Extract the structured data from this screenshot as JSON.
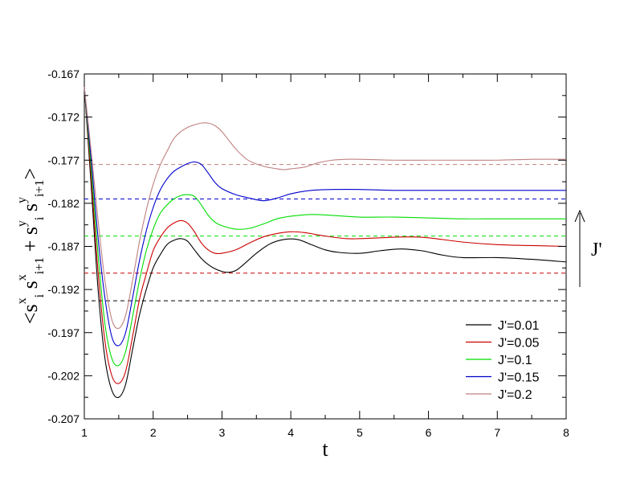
{
  "chart_data": {
    "type": "line",
    "xlabel": "t",
    "ylabel": {
      "base_parts": [
        "<s",
        "s",
        "+ s",
        "s",
        ">"
      ],
      "subscripts": [
        "i",
        "i+1",
        "i",
        "i+1"
      ],
      "superscripts": [
        "x",
        "x",
        "y",
        "y"
      ]
    },
    "xlim": [
      1,
      8
    ],
    "ylim": [
      -0.207,
      -0.167
    ],
    "xticks": [
      1,
      2,
      3,
      4,
      5,
      6,
      7,
      8
    ],
    "yticks": [
      -0.207,
      -0.202,
      -0.197,
      -0.192,
      -0.187,
      -0.182,
      -0.177,
      -0.172,
      -0.167
    ],
    "ytick_labels": [
      "-0.207",
      "-0.202",
      "-0.197",
      "-0.192",
      "-0.187",
      "-0.182",
      "-0.177",
      "-0.172",
      "-0.167"
    ],
    "grid": false,
    "legend_position": "bottom-right",
    "annotation": {
      "text": "J'",
      "arrow_direction": "up"
    },
    "series": [
      {
        "name": "J'=0.01",
        "color": "#000000",
        "points": [
          [
            1.0,
            -0.1685
          ],
          [
            1.1,
            -0.18
          ],
          [
            1.2,
            -0.192
          ],
          [
            1.3,
            -0.2
          ],
          [
            1.4,
            -0.2037
          ],
          [
            1.5,
            -0.2045
          ],
          [
            1.6,
            -0.203
          ],
          [
            1.7,
            -0.199
          ],
          [
            1.8,
            -0.195
          ],
          [
            1.9,
            -0.192
          ],
          [
            2.0,
            -0.1895
          ],
          [
            2.1,
            -0.188
          ],
          [
            2.2,
            -0.1868
          ],
          [
            2.3,
            -0.1863
          ],
          [
            2.4,
            -0.1861
          ],
          [
            2.5,
            -0.1864
          ],
          [
            2.6,
            -0.1874
          ],
          [
            2.7,
            -0.1884
          ],
          [
            2.8,
            -0.1891
          ],
          [
            2.9,
            -0.1896
          ],
          [
            3.0,
            -0.1899
          ],
          [
            3.1,
            -0.19
          ],
          [
            3.2,
            -0.1898
          ],
          [
            3.3,
            -0.1892
          ],
          [
            3.5,
            -0.1878
          ],
          [
            3.7,
            -0.1867
          ],
          [
            3.9,
            -0.1862
          ],
          [
            4.1,
            -0.1862
          ],
          [
            4.3,
            -0.1868
          ],
          [
            4.5,
            -0.1874
          ],
          [
            4.7,
            -0.1877
          ],
          [
            5.0,
            -0.1878
          ],
          [
            5.3,
            -0.1875
          ],
          [
            5.6,
            -0.1873
          ],
          [
            5.9,
            -0.1875
          ],
          [
            6.2,
            -0.188
          ],
          [
            6.5,
            -0.1883
          ],
          [
            7.0,
            -0.1883
          ],
          [
            7.5,
            -0.1885
          ],
          [
            8.0,
            -0.1888
          ]
        ]
      },
      {
        "name": "J'=0.05",
        "color": "#cc0000",
        "points": [
          [
            1.0,
            -0.1685
          ],
          [
            1.1,
            -0.179
          ],
          [
            1.2,
            -0.19
          ],
          [
            1.3,
            -0.198
          ],
          [
            1.4,
            -0.202
          ],
          [
            1.5,
            -0.2029
          ],
          [
            1.6,
            -0.2015
          ],
          [
            1.7,
            -0.1975
          ],
          [
            1.8,
            -0.1932
          ],
          [
            1.9,
            -0.1902
          ],
          [
            2.0,
            -0.1875
          ],
          [
            2.1,
            -0.186
          ],
          [
            2.2,
            -0.1849
          ],
          [
            2.3,
            -0.1843
          ],
          [
            2.4,
            -0.184
          ],
          [
            2.5,
            -0.1843
          ],
          [
            2.6,
            -0.1853
          ],
          [
            2.7,
            -0.1866
          ],
          [
            2.8,
            -0.1874
          ],
          [
            2.9,
            -0.1878
          ],
          [
            3.0,
            -0.1878
          ],
          [
            3.2,
            -0.1874
          ],
          [
            3.4,
            -0.1866
          ],
          [
            3.6,
            -0.1859
          ],
          [
            3.8,
            -0.1855
          ],
          [
            4.0,
            -0.1853
          ],
          [
            4.2,
            -0.1854
          ],
          [
            4.5,
            -0.1858
          ],
          [
            4.8,
            -0.1861
          ],
          [
            5.0,
            -0.1861
          ],
          [
            5.3,
            -0.186
          ],
          [
            5.7,
            -0.1859
          ],
          [
            6.0,
            -0.186
          ],
          [
            6.5,
            -0.1865
          ],
          [
            7.0,
            -0.1868
          ],
          [
            7.5,
            -0.1869
          ],
          [
            8.0,
            -0.187
          ]
        ]
      },
      {
        "name": "J'=0.1",
        "color": "#00dd00",
        "points": [
          [
            1.0,
            -0.1685
          ],
          [
            1.1,
            -0.178
          ],
          [
            1.2,
            -0.188
          ],
          [
            1.3,
            -0.196
          ],
          [
            1.4,
            -0.2
          ],
          [
            1.5,
            -0.2008
          ],
          [
            1.6,
            -0.1992
          ],
          [
            1.7,
            -0.1952
          ],
          [
            1.8,
            -0.191
          ],
          [
            1.9,
            -0.1875
          ],
          [
            2.0,
            -0.185
          ],
          [
            2.1,
            -0.1832
          ],
          [
            2.2,
            -0.1822
          ],
          [
            2.3,
            -0.1815
          ],
          [
            2.4,
            -0.1811
          ],
          [
            2.5,
            -0.181
          ],
          [
            2.6,
            -0.1812
          ],
          [
            2.7,
            -0.1822
          ],
          [
            2.8,
            -0.1834
          ],
          [
            2.9,
            -0.1842
          ],
          [
            3.0,
            -0.1846
          ],
          [
            3.2,
            -0.185
          ],
          [
            3.4,
            -0.1849
          ],
          [
            3.6,
            -0.1844
          ],
          [
            3.8,
            -0.1838
          ],
          [
            4.0,
            -0.1835
          ],
          [
            4.3,
            -0.1833
          ],
          [
            4.6,
            -0.1834
          ],
          [
            5.0,
            -0.1836
          ],
          [
            5.5,
            -0.1836
          ],
          [
            6.0,
            -0.1837
          ],
          [
            6.5,
            -0.1838
          ],
          [
            7.0,
            -0.1838
          ],
          [
            7.5,
            -0.1838
          ],
          [
            8.0,
            -0.1838
          ]
        ]
      },
      {
        "name": "J'=0.15",
        "color": "#0000cc",
        "points": [
          [
            1.0,
            -0.1685
          ],
          [
            1.1,
            -0.177
          ],
          [
            1.2,
            -0.186
          ],
          [
            1.3,
            -0.193
          ],
          [
            1.4,
            -0.1975
          ],
          [
            1.5,
            -0.1985
          ],
          [
            1.6,
            -0.197
          ],
          [
            1.7,
            -0.193
          ],
          [
            1.8,
            -0.1887
          ],
          [
            1.9,
            -0.1852
          ],
          [
            2.0,
            -0.1825
          ],
          [
            2.1,
            -0.1805
          ],
          [
            2.2,
            -0.1792
          ],
          [
            2.3,
            -0.1783
          ],
          [
            2.4,
            -0.1778
          ],
          [
            2.5,
            -0.1774
          ],
          [
            2.6,
            -0.1772
          ],
          [
            2.7,
            -0.1775
          ],
          [
            2.8,
            -0.1785
          ],
          [
            2.9,
            -0.1796
          ],
          [
            3.0,
            -0.1803
          ],
          [
            3.2,
            -0.181
          ],
          [
            3.4,
            -0.1814
          ],
          [
            3.6,
            -0.1817
          ],
          [
            3.8,
            -0.1814
          ],
          [
            4.0,
            -0.1809
          ],
          [
            4.3,
            -0.1805
          ],
          [
            4.6,
            -0.1804
          ],
          [
            5.0,
            -0.1804
          ],
          [
            5.5,
            -0.1805
          ],
          [
            6.0,
            -0.1805
          ],
          [
            6.5,
            -0.1805
          ],
          [
            7.0,
            -0.1805
          ],
          [
            7.5,
            -0.1805
          ],
          [
            8.0,
            -0.1805
          ]
        ]
      },
      {
        "name": "J'=0.2",
        "color": "#c08080",
        "points": [
          [
            1.0,
            -0.1685
          ],
          [
            1.1,
            -0.176
          ],
          [
            1.2,
            -0.184
          ],
          [
            1.3,
            -0.191
          ],
          [
            1.4,
            -0.1955
          ],
          [
            1.5,
            -0.1965
          ],
          [
            1.6,
            -0.195
          ],
          [
            1.7,
            -0.191
          ],
          [
            1.8,
            -0.1865
          ],
          [
            1.9,
            -0.1828
          ],
          [
            2.0,
            -0.1798
          ],
          [
            2.1,
            -0.1776
          ],
          [
            2.2,
            -0.176
          ],
          [
            2.3,
            -0.1745
          ],
          [
            2.4,
            -0.1737
          ],
          [
            2.5,
            -0.1732
          ],
          [
            2.6,
            -0.1729
          ],
          [
            2.7,
            -0.1727
          ],
          [
            2.8,
            -0.1727
          ],
          [
            2.9,
            -0.173
          ],
          [
            3.0,
            -0.1737
          ],
          [
            3.1,
            -0.1747
          ],
          [
            3.2,
            -0.1757
          ],
          [
            3.3,
            -0.1765
          ],
          [
            3.4,
            -0.1771
          ],
          [
            3.6,
            -0.1777
          ],
          [
            3.8,
            -0.178
          ],
          [
            3.9,
            -0.1781
          ],
          [
            4.0,
            -0.178
          ],
          [
            4.2,
            -0.1778
          ],
          [
            4.4,
            -0.1773
          ],
          [
            4.6,
            -0.177
          ],
          [
            4.8,
            -0.1769
          ],
          [
            5.0,
            -0.1769
          ],
          [
            5.5,
            -0.177
          ],
          [
            6.0,
            -0.177
          ],
          [
            6.5,
            -0.177
          ],
          [
            7.0,
            -0.177
          ],
          [
            7.5,
            -0.1769
          ],
          [
            8.0,
            -0.1769
          ]
        ]
      }
    ],
    "reference_lines": [
      {
        "y": -0.1933,
        "color": "#000000"
      },
      {
        "y": -0.1901,
        "color": "#cc0000"
      },
      {
        "y": -0.1858,
        "color": "#00dd00"
      },
      {
        "y": -0.1815,
        "color": "#0000cc"
      },
      {
        "y": -0.1775,
        "color": "#c08080"
      }
    ]
  }
}
